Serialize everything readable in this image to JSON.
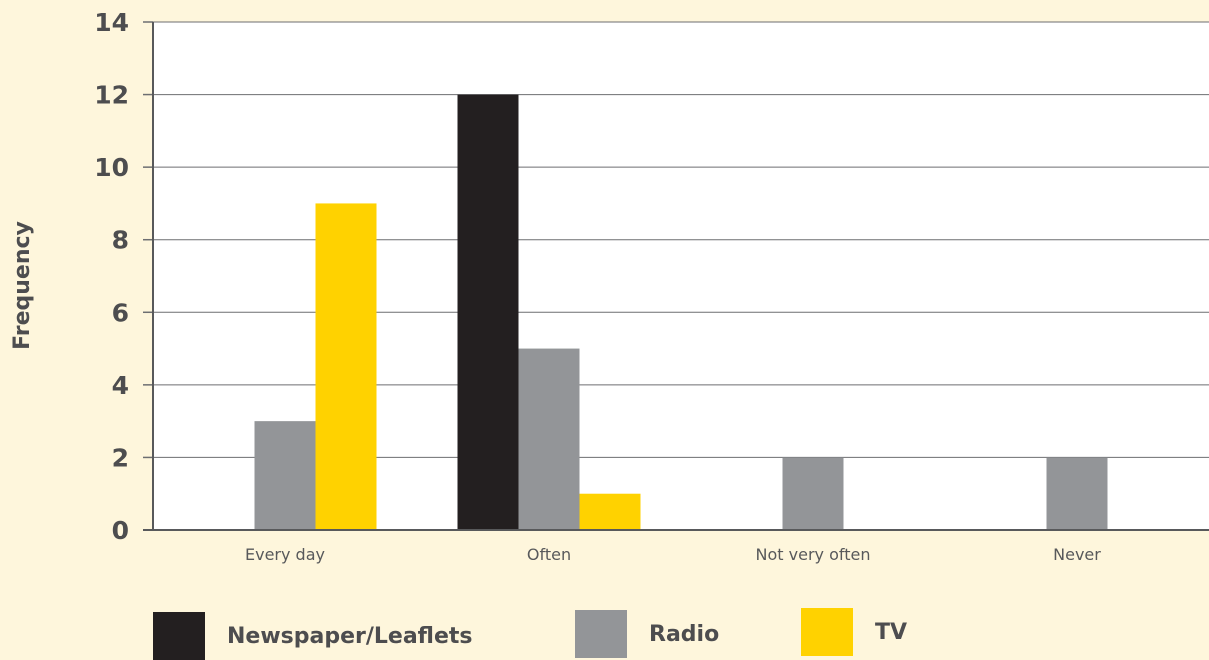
{
  "chart_data": {
    "type": "bar",
    "title": "",
    "xlabel": "",
    "ylabel": "Frequency",
    "ylim": [
      0,
      14
    ],
    "yticks": [
      0,
      2,
      4,
      6,
      8,
      10,
      12,
      14
    ],
    "grid": true,
    "legend_position": "bottom",
    "categories": [
      "Every day",
      "Often",
      "Not very often",
      "Never"
    ],
    "series": [
      {
        "name": "Newspaper/Leaflets",
        "color": "#231f20",
        "values": [
          0,
          12,
          0,
          0
        ]
      },
      {
        "name": "Radio",
        "color": "#939598",
        "values": [
          3,
          5,
          2,
          2
        ]
      },
      {
        "name": "TV",
        "color": "#ffd200",
        "values": [
          9,
          1,
          0,
          0
        ]
      }
    ]
  }
}
